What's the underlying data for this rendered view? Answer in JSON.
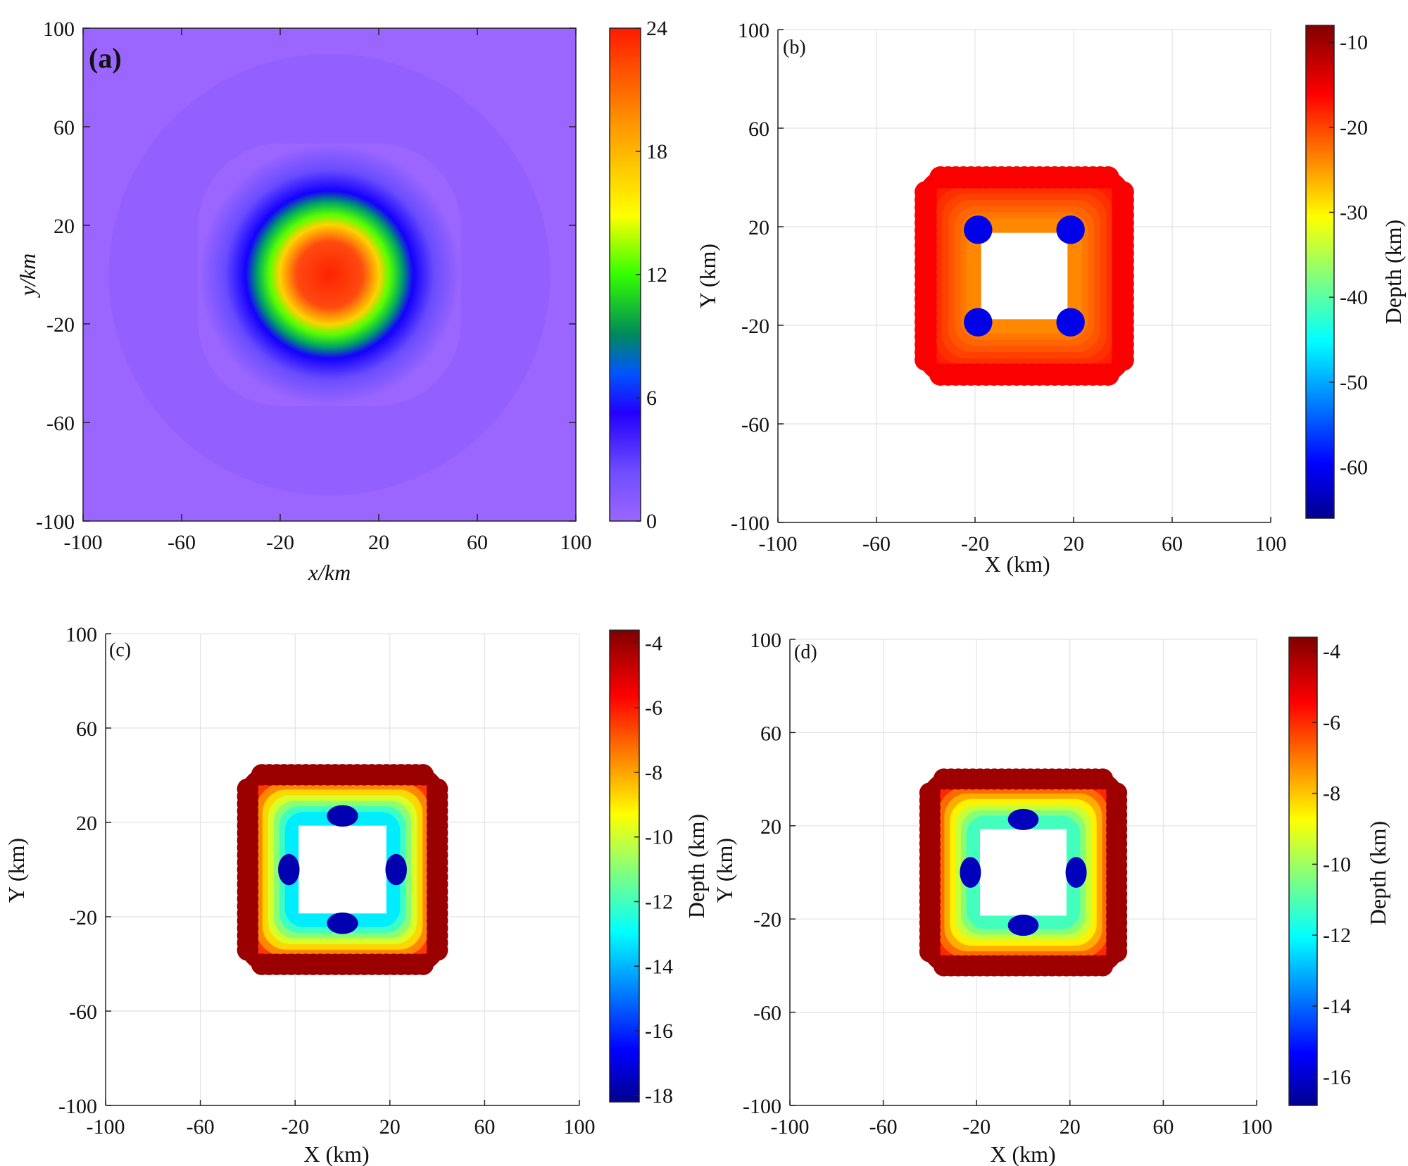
{
  "chart_data": [
    {
      "type": "heatmap",
      "panel_label": "(a)",
      "xlabel": "x/km",
      "ylabel": "y/km",
      "xlim": [
        -100,
        100
      ],
      "ylim": [
        -100,
        100
      ],
      "xticks": [
        "-100",
        "-60",
        "-20",
        "20",
        "60",
        "100"
      ],
      "yticks": [
        "100",
        "60",
        "20",
        "-20",
        "-60",
        "-100"
      ],
      "colorbar": {
        "min": 0,
        "max": 24,
        "ticks": [
          "24",
          "18",
          "12",
          "6",
          "0"
        ],
        "label": "",
        "colormap": "rainbow"
      },
      "grid": false,
      "description_field": {
        "shape": "rounded-square",
        "center": [
          0,
          0
        ],
        "half_width_km": 28,
        "peak": 24
      }
    },
    {
      "type": "scatter",
      "panel_label": "(b)",
      "xlabel": "X (km)",
      "ylabel": "Y (km)",
      "xlim": [
        -100,
        100
      ],
      "ylim": [
        -100,
        100
      ],
      "xticks": [
        "-100",
        "-60",
        "-20",
        "20",
        "60",
        "100"
      ],
      "yticks": [
        "100",
        "60",
        "20",
        "-20",
        "-60",
        "-100"
      ],
      "colorbar": {
        "min": -66,
        "max": -8,
        "ticks": [
          "-10",
          "-20",
          "-30",
          "-40",
          "-50",
          "-60"
        ],
        "label": "Depth (km)",
        "colormap": "jet"
      },
      "grid": true,
      "ring": {
        "outer_half": 40,
        "inner_half": 20,
        "outer_depth": -15,
        "inner_depth": -23,
        "corner_depth": -60
      }
    },
    {
      "type": "scatter",
      "panel_label": "(c)",
      "xlabel": "X (km)",
      "ylabel": "Y (km)",
      "xlim": [
        -100,
        100
      ],
      "ylim": [
        -100,
        100
      ],
      "xticks": [
        "-100",
        "-60",
        "-20",
        "20",
        "60",
        "100"
      ],
      "yticks": [
        "100",
        "60",
        "20",
        "-20",
        "-60",
        "-100"
      ],
      "colorbar": {
        "min": -18.2,
        "max": -3.6,
        "ticks": [
          "-4",
          "-6",
          "-8",
          "-10",
          "-12",
          "-14",
          "-16",
          "-18"
        ],
        "label": "Depth (km)",
        "colormap": "jet"
      },
      "grid": true,
      "ring": {
        "outer_half": 40,
        "inner_half": 21,
        "outer_depth": -4,
        "inner_depth": -13,
        "midside_depth": -17.5
      }
    },
    {
      "type": "scatter",
      "panel_label": "(d)",
      "xlabel": "X (km)",
      "ylabel": "Y (km)",
      "xlim": [
        -100,
        100
      ],
      "ylim": [
        -100,
        100
      ],
      "xticks": [
        "-100",
        "-60",
        "-20",
        "20",
        "60",
        "100"
      ],
      "yticks": [
        "100",
        "60",
        "20",
        "-20",
        "-60",
        "-100"
      ],
      "colorbar": {
        "min": -16.8,
        "max": -3.6,
        "ticks": [
          "-4",
          "-6",
          "-8",
          "-10",
          "-12",
          "-14",
          "-16"
        ],
        "label": "Depth (km)",
        "colormap": "jet"
      },
      "grid": true,
      "ring": {
        "outer_half": 40,
        "inner_half": 21,
        "outer_depth": -4,
        "inner_depth": -11,
        "midside_depth": -16
      }
    }
  ]
}
